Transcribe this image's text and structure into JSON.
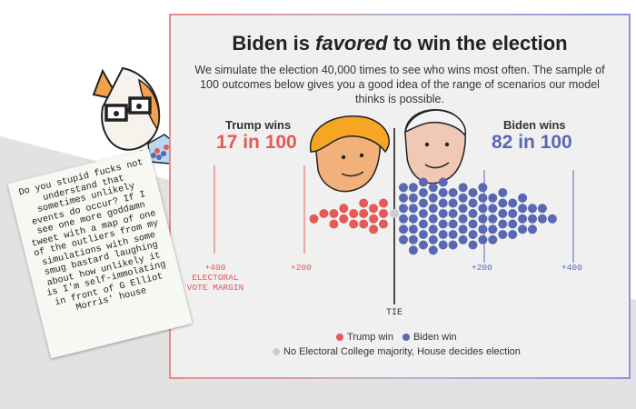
{
  "card": {
    "title_before": "Biden is ",
    "title_em": "favored",
    "title_after": " to win the election",
    "subtitle": "We simulate the election 40,000 times to see who wins most often. The sample of 100 outcomes below gives you a good idea of the range of scenarios our model thinks is possible."
  },
  "trump": {
    "label": "Trump wins",
    "value": "17 in 100",
    "color": "#e35a57"
  },
  "biden": {
    "label": "Biden wins",
    "value": "82 in 100",
    "color": "#5a68b2"
  },
  "axis": {
    "trump_400": "+400",
    "trump_400_caption": "ELECTORAL VOTE MARGIN",
    "trump_200": "+200",
    "biden_200": "+200",
    "biden_400": "+400",
    "tie": "TIE"
  },
  "legend": {
    "trump_win": "Trump win",
    "biden_win": "Biden win",
    "tie_note": "No Electoral College majority, House decides election",
    "tie_color": "#cccccc"
  },
  "note": {
    "text": "Do you stupid fucks not understand that sometimes unlikely events do occur? If I see one more goddamn tweet with a map of one of the outliers from my simulations with some smug bastard laughing about how unlikely it is I'm self-immolating in front of G Elliot Morris' house"
  },
  "chart_data": {
    "type": "scatter",
    "title": "Biden is favored to win the election",
    "xlabel": "ELECTORAL VOTE MARGIN",
    "x_ticks": [
      "+400",
      "+200",
      "TIE",
      "+200",
      "+400"
    ],
    "series": [
      {
        "name": "Trump win",
        "count": 17
      },
      {
        "name": "Biden win",
        "count": 82
      },
      {
        "name": "No Electoral College majority, House decides election",
        "count": 1
      }
    ]
  }
}
